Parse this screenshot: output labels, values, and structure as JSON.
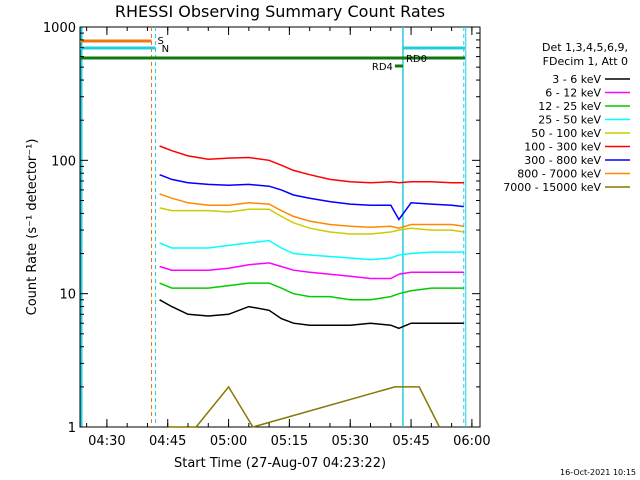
{
  "chart_data": {
    "type": "line",
    "title": "RHESSI Observing Summary Count Rates",
    "xlabel": "Start Time (27-Aug-07 04:23:22)",
    "ylabel": "Count Rate (s⁻¹ detector⁻¹)",
    "y_scale": "log",
    "ylim": [
      1,
      1000
    ],
    "xlim": [
      "04:23:22",
      "06:02:00"
    ],
    "x_ticks": [
      "04:30",
      "04:45",
      "05:00",
      "05:15",
      "05:30",
      "05:45",
      "06:00"
    ],
    "y_ticks": [
      "1",
      "10",
      "100",
      "1000"
    ],
    "legend": {
      "position": "top-right",
      "header": [
        "Det 1,3,4,5,6,9,",
        "FDecim 1, Att 0"
      ]
    },
    "series": [
      {
        "name": "3 - 6 keV",
        "color": "#000000",
        "x": [
          "04:43",
          "04:46",
          "04:50",
          "04:55",
          "05:00",
          "05:05",
          "05:10",
          "05:13",
          "05:16",
          "05:20",
          "05:25",
          "05:30",
          "05:35",
          "05:40",
          "05:42",
          "05:45",
          "05:50",
          "05:55",
          "05:58"
        ],
        "values": [
          9,
          8,
          7,
          6.8,
          7,
          8,
          7.5,
          6.5,
          6,
          5.8,
          5.8,
          5.8,
          6,
          5.8,
          5.5,
          6,
          6,
          6,
          6
        ]
      },
      {
        "name": "6 - 12 keV",
        "color": "#ff00ff",
        "x": [
          "04:43",
          "04:46",
          "04:50",
          "04:55",
          "05:00",
          "05:05",
          "05:10",
          "05:13",
          "05:16",
          "05:20",
          "05:25",
          "05:30",
          "05:35",
          "05:40",
          "05:42",
          "05:45",
          "05:50",
          "05:55",
          "05:58"
        ],
        "values": [
          16,
          15,
          15,
          15,
          15.5,
          16.5,
          17,
          16,
          15,
          14.5,
          14,
          13.5,
          13,
          13,
          14,
          14.5,
          14.5,
          14.5,
          14.5
        ]
      },
      {
        "name": "12 - 25 keV",
        "color": "#00cc00",
        "x": [
          "04:43",
          "04:46",
          "04:50",
          "04:55",
          "05:00",
          "05:05",
          "05:10",
          "05:13",
          "05:16",
          "05:20",
          "05:25",
          "05:30",
          "05:35",
          "05:40",
          "05:42",
          "05:45",
          "05:50",
          "05:55",
          "05:58"
        ],
        "values": [
          12,
          11,
          11,
          11,
          11.5,
          12,
          12,
          11,
          10,
          9.5,
          9.5,
          9,
          9,
          9.5,
          10,
          10.5,
          11,
          11,
          11
        ]
      },
      {
        "name": "25 - 50 keV",
        "color": "#00ffff",
        "x": [
          "04:43",
          "04:46",
          "04:50",
          "04:55",
          "05:00",
          "05:05",
          "05:10",
          "05:13",
          "05:16",
          "05:20",
          "05:25",
          "05:30",
          "05:35",
          "05:40",
          "05:42",
          "05:45",
          "05:50",
          "05:55",
          "05:58"
        ],
        "values": [
          24,
          22,
          22,
          22,
          23,
          24,
          25,
          22,
          20,
          19.5,
          19,
          18.5,
          18,
          18.5,
          19.5,
          20,
          20.5,
          20.5,
          20.5
        ]
      },
      {
        "name": "50 - 100 keV",
        "color": "#cccc00",
        "x": [
          "04:43",
          "04:46",
          "04:50",
          "04:55",
          "05:00",
          "05:05",
          "05:10",
          "05:13",
          "05:16",
          "05:20",
          "05:25",
          "05:30",
          "05:35",
          "05:40",
          "05:42",
          "05:45",
          "05:50",
          "05:55",
          "05:58"
        ],
        "values": [
          44,
          42,
          42,
          42,
          41,
          43,
          43,
          38,
          34,
          31,
          29,
          28,
          28,
          29,
          30,
          31,
          30,
          30,
          29
        ]
      },
      {
        "name": "100 - 300 keV",
        "color": "#ff0000",
        "x": [
          "04:43",
          "04:46",
          "04:50",
          "04:55",
          "05:00",
          "05:05",
          "05:10",
          "05:13",
          "05:16",
          "05:20",
          "05:25",
          "05:30",
          "05:35",
          "05:40",
          "05:42",
          "05:45",
          "05:50",
          "05:55",
          "05:58"
        ],
        "values": [
          128,
          118,
          108,
          102,
          104,
          105,
          100,
          92,
          84,
          78,
          72,
          69,
          68,
          69,
          68,
          69,
          69,
          68,
          68
        ]
      },
      {
        "name": "300 - 800 keV",
        "color": "#0000ff",
        "x": [
          "04:43",
          "04:46",
          "04:50",
          "04:55",
          "05:00",
          "05:05",
          "05:10",
          "05:13",
          "05:16",
          "05:20",
          "05:25",
          "05:30",
          "05:35",
          "05:40",
          "05:42",
          "05:45",
          "05:50",
          "05:55",
          "05:58"
        ],
        "values": [
          78,
          72,
          68,
          66,
          65,
          66,
          64,
          60,
          55,
          52,
          49,
          47,
          46,
          46,
          36,
          48,
          47,
          46,
          45
        ]
      },
      {
        "name": "800 - 7000 keV",
        "color": "#ff8800",
        "x": [
          "04:43",
          "04:46",
          "04:50",
          "04:55",
          "05:00",
          "05:05",
          "05:10",
          "05:13",
          "05:16",
          "05:20",
          "05:25",
          "05:30",
          "05:35",
          "05:40",
          "05:42",
          "05:45",
          "05:50",
          "05:55",
          "05:58"
        ],
        "values": [
          56,
          52,
          48,
          46,
          46,
          48,
          47,
          42,
          38,
          35,
          33,
          32,
          31.5,
          32,
          31,
          33,
          33,
          33,
          32
        ]
      },
      {
        "name": "7000 - 15000 keV",
        "color": "#887700",
        "x": [
          "04:45",
          "04:52",
          "05:00",
          "05:06",
          "05:41",
          "05:47",
          "05:52"
        ],
        "values": [
          1,
          1,
          2,
          1,
          2,
          2,
          1
        ]
      }
    ],
    "annotations": [
      "S",
      "N",
      "RD4",
      "RD0"
    ]
  },
  "footer_timestamp": "16-Oct-2021 10:15"
}
